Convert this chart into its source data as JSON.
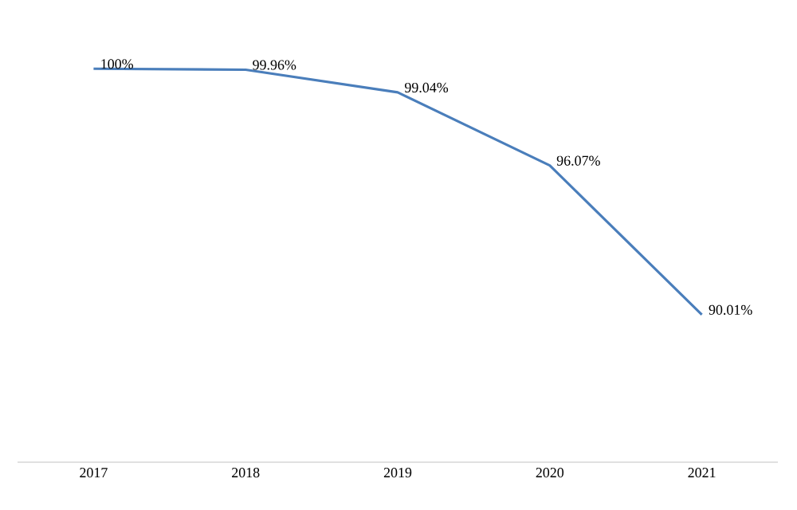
{
  "chart_data": {
    "type": "line",
    "categories": [
      "2017",
      "2018",
      "2019",
      "2020",
      "2021"
    ],
    "values": [
      100,
      99.96,
      99.04,
      96.07,
      90.01
    ],
    "value_labels": [
      "100%",
      "99.96%",
      "99.04%",
      "96.07%",
      "90.01%"
    ],
    "color": "#4a7ebb",
    "marker": "none",
    "line_style": "solid"
  }
}
